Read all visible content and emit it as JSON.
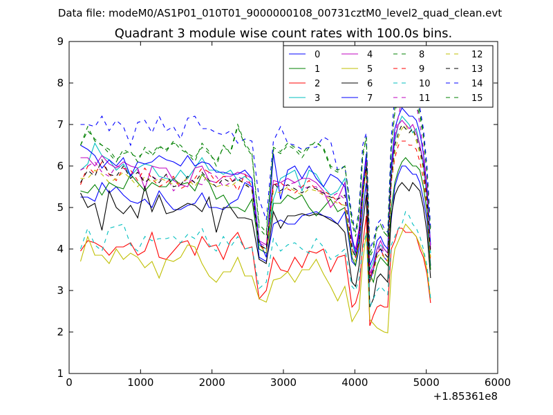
{
  "header_text": "Data file: modeM0/AS1P01_010T01_9000000108_00731cztM0_level2_quad_clean.evt",
  "chart_data": {
    "type": "line",
    "title": "Quadrant 3 module wise count rates with 100.0s bins.",
    "xlabel": "",
    "ylabel": "",
    "x_offset_label": "+1.85361e8",
    "xlim": [
      0,
      6000
    ],
    "ylim": [
      1,
      9
    ],
    "x_ticks": [
      "0",
      "1000",
      "2000",
      "3000",
      "4000",
      "5000",
      "6000"
    ],
    "y_ticks": [
      "1",
      "2",
      "3",
      "4",
      "5",
      "6",
      "7",
      "8",
      "9"
    ],
    "grid": false,
    "legend_position": "top-right",
    "x": [
      160,
      260,
      360,
      460,
      560,
      660,
      760,
      860,
      960,
      1060,
      1160,
      1260,
      1360,
      1460,
      1560,
      1660,
      1760,
      1860,
      1960,
      2060,
      2160,
      2260,
      2360,
      2460,
      2560,
      2660,
      2760,
      2860,
      2960,
      3060,
      3160,
      3260,
      3360,
      3460,
      3560,
      3660,
      3760,
      3860,
      3960,
      4010,
      4060,
      4110,
      4160,
      4210,
      4260,
      4310,
      4360,
      4410,
      4460,
      4510,
      4560,
      4610,
      4660,
      4710,
      4760,
      4810,
      4860,
      4910,
      4960,
      5010,
      5060
    ],
    "series": [
      {
        "name": "0",
        "color": "#0000ff",
        "dash": false,
        "values": [
          5.25,
          5.25,
          5.15,
          5.6,
          5.35,
          5.5,
          5.3,
          5.15,
          5.1,
          5.2,
          5.0,
          5.4,
          5.15,
          4.95,
          4.95,
          5.05,
          5.1,
          5.35,
          5.0,
          5.0,
          4.95,
          5.1,
          5.2,
          5.6,
          5.5,
          3.8,
          3.7,
          4.6,
          4.7,
          4.6,
          4.6,
          4.8,
          4.85,
          4.9,
          4.8,
          4.75,
          4.6,
          4.9,
          3.7,
          3.6,
          4.0,
          4.9,
          5.6,
          3.2,
          3.5,
          3.9,
          4.0,
          3.8,
          3.7,
          4.7,
          5.5,
          5.8,
          6.0,
          6.0,
          5.9,
          5.8,
          5.8,
          5.6,
          5.2,
          4.7,
          3.6
        ]
      },
      {
        "name": "1",
        "color": "#008000",
        "dash": false,
        "values": [
          5.4,
          5.35,
          5.55,
          5.3,
          5.6,
          5.5,
          5.45,
          5.8,
          5.6,
          5.4,
          5.6,
          5.5,
          5.5,
          5.7,
          5.55,
          5.6,
          5.4,
          5.8,
          5.6,
          5.2,
          5.3,
          5.0,
          5.0,
          4.9,
          5.2,
          4.0,
          3.9,
          5.1,
          5.1,
          5.3,
          5.2,
          5.3,
          5.0,
          4.8,
          5.0,
          5.2,
          4.9,
          5.0,
          3.8,
          3.6,
          4.2,
          5.2,
          6.0,
          3.4,
          3.2,
          3.6,
          3.8,
          3.7,
          3.6,
          5.0,
          5.6,
          5.9,
          6.1,
          6.2,
          6.1,
          6.0,
          6.0,
          5.9,
          5.5,
          4.9,
          3.5
        ]
      },
      {
        "name": "2",
        "color": "#ff0000",
        "dash": false,
        "values": [
          3.95,
          4.2,
          4.15,
          4.05,
          3.85,
          4.05,
          4.05,
          4.15,
          3.85,
          3.95,
          4.4,
          3.8,
          3.75,
          3.95,
          4.15,
          4.2,
          3.85,
          4.3,
          4.05,
          4.1,
          3.75,
          4.2,
          4.4,
          4.0,
          4.05,
          2.8,
          3.0,
          3.8,
          3.5,
          3.45,
          3.8,
          3.55,
          3.95,
          3.9,
          4.0,
          3.45,
          3.8,
          3.85,
          2.6,
          2.7,
          3.0,
          4.1,
          4.8,
          2.15,
          2.4,
          2.6,
          2.65,
          2.6,
          2.6,
          4.0,
          4.2,
          4.5,
          4.5,
          4.4,
          4.4,
          4.4,
          4.3,
          4.0,
          3.8,
          3.4,
          2.7
        ]
      },
      {
        "name": "3",
        "color": "#00bfbf",
        "dash": false,
        "values": [
          5.9,
          6.05,
          6.55,
          6.25,
          6.15,
          5.9,
          6.05,
          5.75,
          5.95,
          6.05,
          6.0,
          5.75,
          5.7,
          5.65,
          5.9,
          5.7,
          5.95,
          6.2,
          5.9,
          5.9,
          5.8,
          5.9,
          5.65,
          5.75,
          5.6,
          4.1,
          4.0,
          5.2,
          5.7,
          5.8,
          5.9,
          5.4,
          5.9,
          5.8,
          5.5,
          5.3,
          5.4,
          5.7,
          4.2,
          3.8,
          4.3,
          5.4,
          6.1,
          3.5,
          3.7,
          4.0,
          4.1,
          4.0,
          3.9,
          5.7,
          6.6,
          7.0,
          7.2,
          7.1,
          7.0,
          6.8,
          6.9,
          6.5,
          6.0,
          5.2,
          3.9
        ]
      },
      {
        "name": "4",
        "color": "#bf00bf",
        "dash": false,
        "values": [
          6.2,
          6.2,
          6.0,
          6.25,
          6.05,
          5.95,
          6.1,
          6.0,
          5.95,
          5.45,
          6.0,
          5.95,
          5.95,
          5.65,
          5.55,
          5.5,
          5.95,
          6.0,
          5.65,
          5.6,
          5.75,
          5.75,
          5.85,
          5.8,
          5.7,
          4.2,
          4.1,
          5.65,
          5.6,
          5.7,
          5.6,
          5.7,
          5.7,
          5.6,
          5.4,
          5.0,
          5.2,
          5.6,
          4.2,
          4.0,
          4.5,
          5.6,
          6.2,
          3.4,
          3.6,
          4.0,
          4.2,
          4.0,
          3.9,
          5.9,
          6.7,
          7.0,
          7.1,
          7.0,
          6.9,
          7.0,
          6.8,
          6.5,
          6.1,
          5.3,
          4.0
        ]
      },
      {
        "name": "5",
        "color": "#bfbf00",
        "dash": false,
        "values": [
          3.7,
          4.3,
          3.85,
          3.85,
          3.65,
          4.0,
          3.75,
          3.9,
          3.8,
          3.55,
          3.7,
          3.3,
          3.75,
          3.7,
          3.8,
          4.1,
          4.05,
          3.65,
          3.35,
          3.2,
          3.45,
          3.45,
          3.8,
          3.35,
          3.35,
          2.8,
          2.72,
          3.25,
          3.3,
          3.45,
          3.2,
          3.5,
          3.5,
          3.75,
          3.4,
          3.1,
          2.75,
          3.1,
          2.25,
          2.4,
          2.55,
          3.7,
          4.4,
          2.3,
          2.2,
          2.1,
          2.05,
          2.0,
          1.98,
          3.4,
          4.0,
          4.2,
          4.4,
          4.6,
          4.5,
          4.4,
          4.3,
          4.1,
          3.9,
          3.5,
          2.8
        ]
      },
      {
        "name": "6",
        "color": "#000000",
        "dash": false,
        "values": [
          5.35,
          5.0,
          5.1,
          4.45,
          5.4,
          5.0,
          4.85,
          5.05,
          4.75,
          5.5,
          4.9,
          5.3,
          4.85,
          4.9,
          5.0,
          5.1,
          5.05,
          4.9,
          5.25,
          4.4,
          5.0,
          5.0,
          4.75,
          4.75,
          4.7,
          3.75,
          3.65,
          4.9,
          4.5,
          4.8,
          4.8,
          4.85,
          4.8,
          4.85,
          4.8,
          4.7,
          4.6,
          4.4,
          3.2,
          3.1,
          3.6,
          4.6,
          5.3,
          2.6,
          2.8,
          3.3,
          3.4,
          3.3,
          3.2,
          4.8,
          5.3,
          5.5,
          5.6,
          5.5,
          5.4,
          5.6,
          5.5,
          5.4,
          5.0,
          4.4,
          3.3
        ]
      },
      {
        "name": "7",
        "color": "#0000ff",
        "dash": false,
        "values": [
          6.5,
          6.4,
          6.25,
          5.95,
          6.15,
          6.0,
          6.2,
          5.75,
          6.1,
          6.05,
          6.1,
          6.25,
          6.15,
          6.1,
          6.0,
          6.25,
          6.0,
          6.1,
          6.05,
          5.85,
          5.85,
          5.8,
          5.8,
          5.9,
          5.7,
          4.2,
          3.8,
          6.3,
          5.2,
          5.9,
          6.0,
          5.7,
          6.0,
          5.7,
          5.5,
          5.8,
          5.7,
          5.5,
          4.3,
          3.9,
          4.4,
          5.5,
          6.3,
          3.6,
          3.8,
          4.2,
          4.3,
          4.1,
          4.0,
          6.0,
          6.9,
          7.2,
          7.4,
          7.3,
          7.2,
          7.2,
          7.1,
          6.8,
          6.3,
          5.5,
          4.1
        ]
      },
      {
        "name": "8",
        "color": "#008000",
        "dash": true,
        "values": [
          6.5,
          6.85,
          6.65,
          6.5,
          6.3,
          6.1,
          6.4,
          6.3,
          6.2,
          6.35,
          6.25,
          6.45,
          6.4,
          6.55,
          6.5,
          6.3,
          6.1,
          6.55,
          6.35,
          6.0,
          6.5,
          6.3,
          6.95,
          6.5,
          6.25,
          4.5,
          4.3,
          6.4,
          6.3,
          6.5,
          6.4,
          6.2,
          6.45,
          6.6,
          6.4,
          5.95,
          5.85,
          6.0,
          4.6,
          4.3,
          4.8,
          6.2,
          6.7,
          3.8,
          4.0,
          4.5,
          4.6,
          4.4,
          4.3,
          6.4,
          7.4,
          7.7,
          7.9,
          7.7,
          7.6,
          7.8,
          7.6,
          7.3,
          6.8,
          5.9,
          4.4
        ]
      },
      {
        "name": "9",
        "color": "#ff0000",
        "dash": true,
        "values": [
          5.55,
          6.0,
          5.8,
          6.1,
          5.8,
          5.65,
          5.95,
          5.9,
          5.65,
          5.95,
          5.7,
          5.5,
          5.6,
          5.75,
          5.45,
          5.55,
          5.7,
          5.95,
          5.85,
          5.6,
          5.75,
          5.7,
          5.4,
          5.8,
          5.5,
          4.1,
          3.95,
          5.55,
          5.6,
          5.45,
          5.35,
          5.5,
          5.65,
          5.4,
          5.4,
          5.3,
          5.15,
          5.0,
          4.0,
          3.8,
          4.2,
          5.3,
          6.0,
          3.3,
          3.5,
          3.9,
          4.0,
          3.8,
          3.7,
          5.6,
          6.2,
          6.5,
          6.6,
          6.6,
          6.5,
          6.5,
          6.4,
          6.1,
          5.7,
          5.0,
          3.7
        ]
      },
      {
        "name": "10",
        "color": "#00bfbf",
        "dash": true,
        "values": [
          4.0,
          4.5,
          4.1,
          3.95,
          4.5,
          4.55,
          4.6,
          4.1,
          3.95,
          4.3,
          4.2,
          4.25,
          4.25,
          4.3,
          4.15,
          4.35,
          4.25,
          4.5,
          4.1,
          3.95,
          4.3,
          4.05,
          4.3,
          4.0,
          4.05,
          3.05,
          3.2,
          4.25,
          3.95,
          4.1,
          4.15,
          4.0,
          3.9,
          4.25,
          4.05,
          3.75,
          3.85,
          4.0,
          3.1,
          3.0,
          3.3,
          4.0,
          4.4,
          2.6,
          2.8,
          3.0,
          3.1,
          3.0,
          2.9,
          4.1,
          4.3,
          4.5,
          4.6,
          4.9,
          4.8,
          4.6,
          4.5,
          4.3,
          4.0,
          3.6,
          2.8
        ]
      },
      {
        "name": "11",
        "color": "#bf00bf",
        "dash": true,
        "values": [
          5.9,
          6.0,
          6.1,
          5.85,
          5.75,
          6.0,
          5.95,
          5.8,
          5.9,
          5.6,
          5.75,
          5.65,
          5.8,
          5.4,
          5.55,
          5.7,
          5.6,
          5.55,
          5.85,
          5.75,
          5.5,
          5.6,
          5.75,
          5.65,
          5.55,
          4.15,
          4.05,
          5.6,
          5.5,
          5.55,
          5.6,
          5.45,
          5.5,
          5.5,
          5.3,
          5.25,
          5.35,
          5.2,
          4.1,
          3.9,
          4.3,
          5.4,
          6.1,
          3.3,
          3.6,
          3.9,
          4.1,
          3.9,
          3.8,
          5.8,
          6.7,
          7.2,
          7.6,
          7.8,
          7.6,
          8.1,
          7.5,
          7.0,
          6.4,
          5.5,
          4.0
        ]
      },
      {
        "name": "12",
        "color": "#bfbf00",
        "dash": true,
        "values": [
          5.7,
          5.7,
          5.9,
          5.8,
          5.6,
          5.7,
          5.85,
          5.7,
          5.5,
          5.75,
          5.6,
          5.7,
          5.65,
          5.55,
          5.6,
          5.7,
          5.5,
          5.8,
          5.6,
          5.5,
          5.55,
          5.5,
          5.65,
          5.6,
          5.4,
          4.1,
          3.9,
          5.4,
          5.35,
          5.5,
          5.4,
          5.3,
          5.45,
          5.4,
          5.3,
          5.2,
          5.1,
          5.05,
          3.9,
          3.7,
          4.1,
          5.3,
          5.9,
          3.2,
          3.4,
          3.8,
          3.9,
          3.8,
          3.7,
          5.6,
          6.3,
          6.7,
          6.9,
          7.0,
          6.8,
          6.9,
          6.6,
          6.3,
          5.9,
          5.1,
          3.8
        ]
      },
      {
        "name": "13",
        "color": "#000000",
        "dash": true,
        "values": [
          5.6,
          5.9,
          5.75,
          6.15,
          5.8,
          5.75,
          6.0,
          5.7,
          5.85,
          5.6,
          5.75,
          5.6,
          5.8,
          5.5,
          5.55,
          5.75,
          5.6,
          5.85,
          5.65,
          5.5,
          5.7,
          5.6,
          5.7,
          5.55,
          5.45,
          4.1,
          4.0,
          5.6,
          5.4,
          5.55,
          5.45,
          5.35,
          5.5,
          5.45,
          5.35,
          5.25,
          5.2,
          5.3,
          4.0,
          3.8,
          4.2,
          5.4,
          6.0,
          3.3,
          3.5,
          3.9,
          4.0,
          3.9,
          3.8,
          5.7,
          6.5,
          6.8,
          7.0,
          6.9,
          6.8,
          6.9,
          6.7,
          6.4,
          6.0,
          5.2,
          3.9
        ]
      },
      {
        "name": "14",
        "color": "#0000ff",
        "dash": true,
        "values": [
          7.0,
          7.0,
          6.95,
          7.2,
          6.85,
          7.1,
          6.95,
          6.5,
          7.05,
          7.1,
          6.8,
          7.2,
          6.85,
          6.95,
          6.65,
          7.15,
          7.2,
          6.9,
          6.9,
          6.8,
          6.75,
          6.85,
          6.55,
          6.65,
          6.6,
          5.2,
          4.7,
          6.6,
          6.95,
          6.55,
          6.5,
          6.4,
          6.45,
          6.45,
          6.7,
          6.6,
          5.9,
          6.0,
          4.8,
          4.4,
          5.0,
          6.5,
          6.8,
          4.0,
          4.2,
          4.6,
          4.7,
          4.5,
          4.4,
          6.7,
          7.7,
          8.0,
          8.1,
          7.9,
          7.8,
          7.9,
          7.7,
          7.4,
          6.9,
          6.0,
          4.5
        ]
      },
      {
        "name": "15",
        "color": "#008000",
        "dash": true,
        "values": [
          6.5,
          6.95,
          6.6,
          6.5,
          6.4,
          6.15,
          6.3,
          6.35,
          6.1,
          6.45,
          6.3,
          6.5,
          6.35,
          6.6,
          6.4,
          6.3,
          6.2,
          6.45,
          6.3,
          6.1,
          6.45,
          6.35,
          7.0,
          6.55,
          6.3,
          4.6,
          4.4,
          6.45,
          6.35,
          6.55,
          6.45,
          6.3,
          6.5,
          6.55,
          6.45,
          6.0,
          5.9,
          6.0,
          4.7,
          4.4,
          4.9,
          6.3,
          6.7,
          3.9,
          4.1,
          4.5,
          4.6,
          4.4,
          4.3,
          6.4,
          7.3,
          7.6,
          7.8,
          7.7,
          7.6,
          7.7,
          7.5,
          7.2,
          6.7,
          5.8,
          4.4
        ]
      }
    ]
  }
}
